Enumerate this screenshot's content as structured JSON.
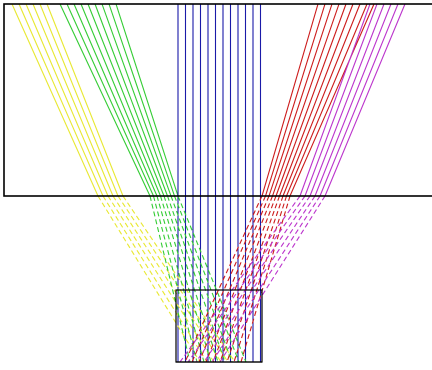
{
  "diagram": {
    "description_kind": "ray-trace",
    "background": "#ffffff",
    "outline_color": "#000000",
    "bundles": [
      {
        "name": "yellow",
        "color": "#e8e830",
        "rays": 6
      },
      {
        "name": "green",
        "color": "#33cc33",
        "rays": 9
      },
      {
        "name": "blue",
        "color": "#1a1aa8",
        "rays": 12
      },
      {
        "name": "red",
        "color": "#cc1a1a",
        "rays": 9
      },
      {
        "name": "magenta",
        "color": "#bb33cc",
        "rays": 6
      }
    ]
  }
}
